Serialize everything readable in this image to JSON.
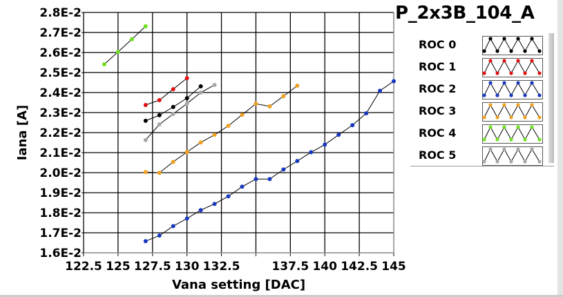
{
  "title": "P_2x3B_104_A",
  "chart_data": {
    "type": "line",
    "title": "P_2x3B_104_A",
    "xlabel": "Vana setting [DAC]",
    "ylabel": "Iana [A]",
    "xlim": [
      122.5,
      145
    ],
    "ylim": [
      0.016,
      0.028
    ],
    "grid": true,
    "legend_placement": "right",
    "x_ticks": [
      122.5,
      125,
      127.5,
      130,
      132.5,
      135,
      137.5,
      140,
      142.5,
      145
    ],
    "x_tick_labels": [
      "122.5",
      "125",
      "127.5",
      "130",
      "132.5",
      "",
      "137.5",
      "140",
      "142.5",
      "145"
    ],
    "y_ticks": [
      0.016,
      0.017,
      0.018,
      0.019,
      0.02,
      0.021,
      0.022,
      0.023,
      0.024,
      0.025,
      0.026,
      0.027,
      0.028
    ],
    "y_tick_labels": [
      "1.6E-2",
      "1.7E-2",
      "1.8E-2",
      "1.9E-2",
      "2.0E-2",
      "2.1E-2",
      "2.2E-2",
      "2.3E-2",
      "2.4E-2",
      "2.5E-2",
      "2.6E-2",
      "2.7E-2",
      "2.8E-2"
    ],
    "series": [
      {
        "name": "ROC 0",
        "color": "#000000",
        "x": [
          127,
          128,
          129,
          130,
          131
        ],
        "y": [
          0.02259,
          0.02287,
          0.02328,
          0.02372,
          0.02431
        ]
      },
      {
        "name": "ROC 1",
        "color": "#e01010",
        "x": [
          127,
          128,
          129,
          130
        ],
        "y": [
          0.02338,
          0.02362,
          0.02417,
          0.02472
        ]
      },
      {
        "name": "ROC 2",
        "color": "#1838c0",
        "x": [
          127,
          128,
          129,
          130,
          131,
          132,
          133,
          134,
          135,
          136,
          137,
          138,
          139,
          140,
          141,
          142,
          143,
          144,
          145
        ],
        "y": [
          0.01658,
          0.01686,
          0.01733,
          0.01771,
          0.01813,
          0.01844,
          0.01882,
          0.0193,
          0.01968,
          0.01968,
          0.02016,
          0.02058,
          0.02102,
          0.0214,
          0.02189,
          0.02237,
          0.02296,
          0.02409,
          0.02457
        ]
      },
      {
        "name": "ROC 3",
        "color": "#f0a020",
        "x": [
          127,
          128,
          129,
          130,
          131,
          132,
          133,
          134,
          135,
          136,
          137,
          138
        ],
        "y": [
          0.02003,
          0.01999,
          0.02054,
          0.02103,
          0.02151,
          0.02189,
          0.02234,
          0.02289,
          0.02344,
          0.02331,
          0.02382,
          0.02434
        ]
      },
      {
        "name": "ROC 4",
        "color": "#70e020",
        "x": [
          124,
          125,
          126,
          127
        ],
        "y": [
          0.02541,
          0.02603,
          0.02666,
          0.02731
        ]
      },
      {
        "name": "ROC 5",
        "color": "#a8a8a8",
        "x": [
          127,
          128,
          129,
          130,
          131,
          132
        ],
        "y": [
          0.02163,
          0.02241,
          0.02293,
          0.02345,
          0.024,
          0.02438
        ]
      }
    ]
  }
}
